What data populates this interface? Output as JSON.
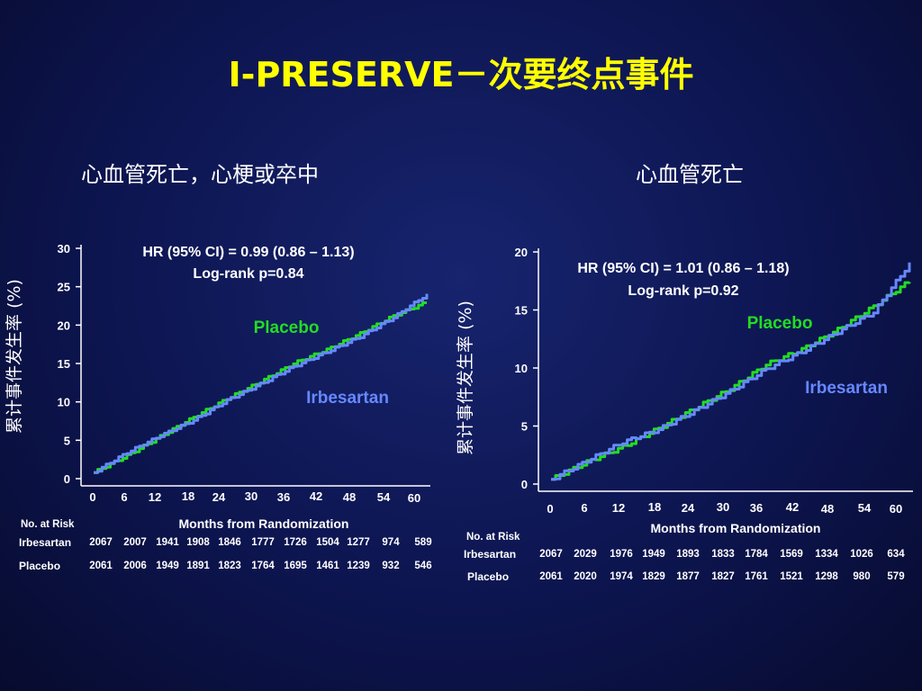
{
  "title": "I-PRESERVE－次要终点事件",
  "left_subtitle": "心血管死亡，心梗或卒中",
  "right_subtitle": "心血管死亡",
  "colors": {
    "placebo": "#22dd22",
    "irbesartan": "#6688ff",
    "title": "#ffff00",
    "background": "#0d1550"
  },
  "chart_data": [
    {
      "type": "line",
      "title": "心血管死亡，心梗或卒中",
      "xlabel": "Months from Randomization",
      "ylabel": "累计事件发生率 (%)",
      "x_ticks": [
        "0",
        "6",
        "12",
        "18",
        "24",
        "30",
        "36",
        "42",
        "48",
        "54",
        "60"
      ],
      "y_ticks": [
        "0",
        "5",
        "10",
        "15",
        "20",
        "25",
        "30"
      ],
      "xlim": [
        0,
        60
      ],
      "ylim": [
        0,
        30
      ],
      "annotation_hr": "HR (95% CI) = 0.99 (0.86 – 1.13)",
      "annotation_p": "Log-rank p=0.84",
      "series": [
        {
          "name": "Placebo",
          "x": [
            0,
            6,
            12,
            18,
            24,
            30,
            36,
            42,
            48,
            54,
            60
          ],
          "y": [
            0.8,
            3.0,
            5.5,
            8.0,
            10.4,
            12.6,
            15.0,
            16.8,
            18.9,
            21.2,
            23.0
          ]
        },
        {
          "name": "Irbesartan",
          "x": [
            0,
            6,
            12,
            18,
            24,
            30,
            36,
            42,
            48,
            54,
            60
          ],
          "y": [
            0.8,
            3.4,
            5.6,
            7.6,
            10.2,
            12.3,
            14.6,
            16.5,
            18.5,
            21.0,
            24.0
          ]
        }
      ],
      "risk_table": {
        "header": "No. at Risk",
        "rows": [
          {
            "label": "Irbesartan",
            "values": [
              "2067",
              "2007",
              "1941",
              "1908",
              "1846",
              "1777",
              "1726",
              "1504",
              "1277",
              "974",
              "589"
            ]
          },
          {
            "label": "Placebo",
            "values": [
              "2061",
              "2006",
              "1949",
              "1891",
              "1823",
              "1764",
              "1695",
              "1461",
              "1239",
              "932",
              "546"
            ]
          }
        ]
      }
    },
    {
      "type": "line",
      "title": "心血管死亡",
      "xlabel": "Months from Randomization",
      "ylabel": "累计事件发生率 (%)",
      "x_ticks": [
        "0",
        "6",
        "12",
        "18",
        "24",
        "30",
        "36",
        "42",
        "48",
        "54",
        "60"
      ],
      "y_ticks": [
        "0",
        "5",
        "10",
        "15",
        "20"
      ],
      "xlim": [
        0,
        60
      ],
      "ylim": [
        0,
        20
      ],
      "annotation_hr": "HR (95% CI) = 1.01 (0.86 – 1.18)",
      "annotation_p": "Log-rank p=0.92",
      "series": [
        {
          "name": "Placebo",
          "x": [
            0,
            6,
            12,
            18,
            24,
            30,
            36,
            42,
            48,
            54,
            60
          ],
          "y": [
            0.4,
            1.9,
            3.2,
            4.8,
            6.5,
            8.2,
            10.3,
            11.6,
            13.3,
            15.3,
            17.5
          ]
        },
        {
          "name": "Irbesartan",
          "x": [
            0,
            6,
            12,
            18,
            24,
            30,
            36,
            42,
            48,
            54,
            60
          ],
          "y": [
            0.4,
            2.0,
            3.6,
            4.7,
            6.3,
            8.0,
            9.9,
            11.4,
            13.1,
            14.8,
            19.0
          ]
        }
      ],
      "risk_table": {
        "header": "No. at Risk",
        "rows": [
          {
            "label": "Irbesartan",
            "values": [
              "2067",
              "2029",
              "1976",
              "1949",
              "1893",
              "1833",
              "1784",
              "1569",
              "1334",
              "1026",
              "634"
            ]
          },
          {
            "label": "Placebo",
            "values": [
              "2061",
              "2020",
              "1974",
              "1829",
              "1877",
              "1827",
              "1761",
              "1521",
              "1298",
              "980",
              "579"
            ]
          }
        ]
      }
    }
  ]
}
